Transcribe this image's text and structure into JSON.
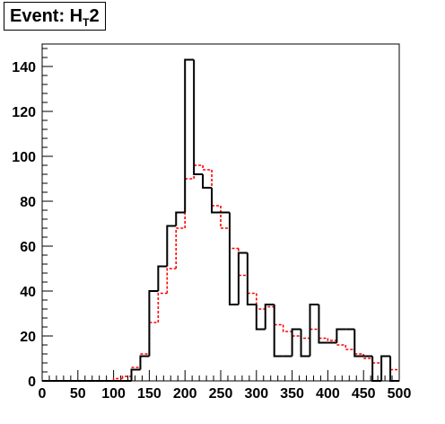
{
  "chart_data": {
    "type": "histogram",
    "title": {
      "prefix": "Event: H",
      "subscript": "T",
      "suffix": "2"
    },
    "xlabel": "",
    "ylabel": "",
    "xlim": [
      0,
      500
    ],
    "ylim": [
      0,
      150
    ],
    "x_ticks": [
      0,
      50,
      100,
      150,
      200,
      250,
      300,
      350,
      400,
      450,
      500
    ],
    "y_ticks": [
      0,
      20,
      40,
      60,
      80,
      100,
      120,
      140
    ],
    "grid": false,
    "legend": "none",
    "bin_width": 12.5,
    "bin_edges_start": 0,
    "series": [
      {
        "style": "solid",
        "color": "#000000",
        "values": [
          0,
          0,
          0,
          0,
          0,
          0,
          0,
          0,
          0,
          0,
          5,
          11,
          40,
          51,
          69,
          75,
          143,
          92,
          86,
          75,
          75,
          34,
          57,
          34,
          23,
          34,
          11,
          11,
          23,
          11,
          34,
          17,
          17,
          23,
          23,
          11,
          11,
          0,
          11,
          0
        ]
      },
      {
        "style": "dashed",
        "color": "#ff0000",
        "values": [
          0,
          0,
          0,
          0,
          0,
          0,
          0,
          0,
          1,
          2,
          6,
          12,
          26,
          39,
          50,
          68,
          90,
          96,
          94,
          78,
          68,
          59,
          47,
          39,
          32,
          33,
          25,
          22,
          20,
          19,
          23,
          19,
          18,
          16,
          14,
          12,
          10,
          8,
          11,
          5
        ]
      }
    ]
  }
}
